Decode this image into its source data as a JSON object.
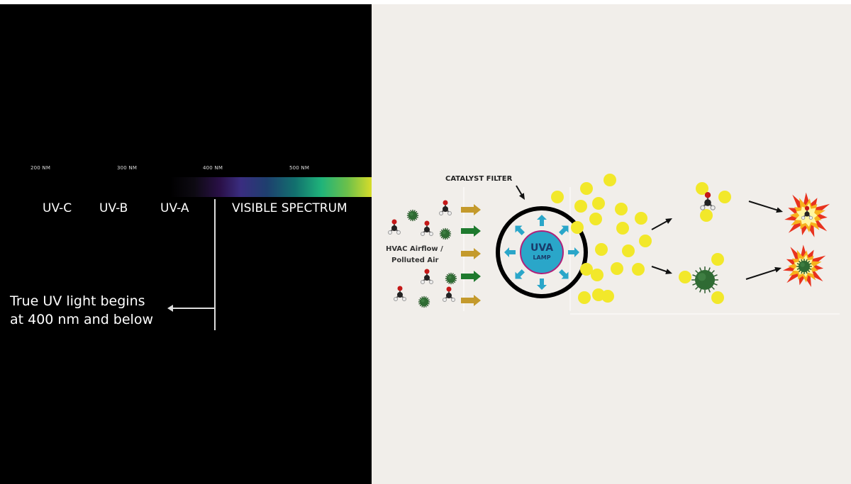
{
  "spectrum": {
    "ticks": [
      "200 NM",
      "300 NM",
      "400 NM",
      "500 NM"
    ],
    "bands": [
      "UV-C",
      "UV-B",
      "UV-A",
      "VISIBLE SPECTRUM"
    ],
    "note_line1": "True UV light begins",
    "note_line2": "at 400 nm and below"
  },
  "diagram": {
    "catalyst_label": "CATALYST FILTER",
    "airflow_line1": "HVAC Airflow /",
    "airflow_line2": "Polluted Air",
    "lamp_line1": "UVA",
    "lamp_line2": "LAMP"
  },
  "colors": {
    "lamp": "#2aa6c9",
    "lamp_border": "#b0207a",
    "uv_arrows": "#2aa6c9",
    "particles": "#f2e82a",
    "flow_arrow_gold": "#c49a2c",
    "flow_arrow_green": "#1e7a2e",
    "virus": "#2f6b33"
  }
}
